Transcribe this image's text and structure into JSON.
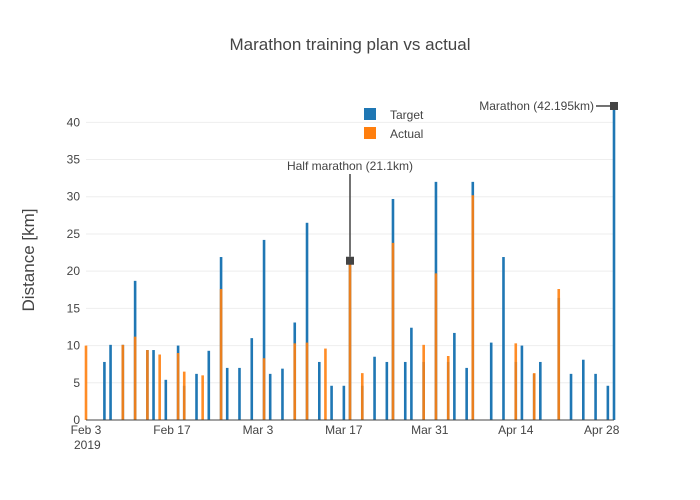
{
  "colors": {
    "target": "#1f77b4",
    "actual": "#ff7f0e",
    "grid": "#eeeeee",
    "annotation": "#444444"
  },
  "chart_data": {
    "type": "bar",
    "barmode": "overlay",
    "title": "Marathon training plan vs actual",
    "xlabel": "",
    "ylabel": "Distance [km]",
    "ylim": [
      0,
      43
    ],
    "yticks": [
      "0",
      "5",
      "10",
      "15",
      "20",
      "25",
      "30",
      "35",
      "40"
    ],
    "xrange_days": [
      0,
      86
    ],
    "xticks": [
      {
        "day": 0,
        "label": "Feb 3",
        "sublabel": "2019"
      },
      {
        "day": 14,
        "label": "Feb 17",
        "sublabel": ""
      },
      {
        "day": 28,
        "label": "Mar 3",
        "sublabel": ""
      },
      {
        "day": 42,
        "label": "Mar 17",
        "sublabel": ""
      },
      {
        "day": 56,
        "label": "Mar 31",
        "sublabel": ""
      },
      {
        "day": 70,
        "label": "Apr 14",
        "sublabel": ""
      },
      {
        "day": 84,
        "label": "Apr 28",
        "sublabel": ""
      }
    ],
    "series": [
      {
        "name": "Target",
        "color": "#1f77b4",
        "points": [
          {
            "day": 3,
            "value": 7.8
          },
          {
            "day": 4,
            "value": 10.1
          },
          {
            "day": 6,
            "value": 10.1
          },
          {
            "day": 8,
            "value": 18.7
          },
          {
            "day": 10,
            "value": 9.4
          },
          {
            "day": 11,
            "value": 9.4
          },
          {
            "day": 13,
            "value": 5.4
          },
          {
            "day": 15,
            "value": 10.0
          },
          {
            "day": 16,
            "value": 4.6
          },
          {
            "day": 18,
            "value": 6.2
          },
          {
            "day": 20,
            "value": 9.3
          },
          {
            "day": 22,
            "value": 21.9
          },
          {
            "day": 23,
            "value": 7.0
          },
          {
            "day": 25,
            "value": 7.0
          },
          {
            "day": 27,
            "value": 11.0
          },
          {
            "day": 29,
            "value": 24.2
          },
          {
            "day": 30,
            "value": 6.2
          },
          {
            "day": 32,
            "value": 6.9
          },
          {
            "day": 34,
            "value": 13.1
          },
          {
            "day": 36,
            "value": 26.5
          },
          {
            "day": 38,
            "value": 7.8
          },
          {
            "day": 40,
            "value": 4.6
          },
          {
            "day": 42,
            "value": 4.6
          },
          {
            "day": 43,
            "value": 21.1
          },
          {
            "day": 45,
            "value": 4.6
          },
          {
            "day": 47,
            "value": 8.5
          },
          {
            "day": 49,
            "value": 7.8
          },
          {
            "day": 50,
            "value": 29.7
          },
          {
            "day": 52,
            "value": 7.8
          },
          {
            "day": 53,
            "value": 12.4
          },
          {
            "day": 55,
            "value": 7.8
          },
          {
            "day": 57,
            "value": 32.0
          },
          {
            "day": 59,
            "value": 7.8
          },
          {
            "day": 60,
            "value": 11.7
          },
          {
            "day": 62,
            "value": 7.0
          },
          {
            "day": 63,
            "value": 32.0
          },
          {
            "day": 66,
            "value": 10.4
          },
          {
            "day": 68,
            "value": 21.9
          },
          {
            "day": 70,
            "value": 7.8
          },
          {
            "day": 71,
            "value": 10.0
          },
          {
            "day": 73,
            "value": 6.2
          },
          {
            "day": 74,
            "value": 7.8
          },
          {
            "day": 77,
            "value": 16.4
          },
          {
            "day": 79,
            "value": 6.2
          },
          {
            "day": 81,
            "value": 8.1
          },
          {
            "day": 83,
            "value": 6.2
          },
          {
            "day": 85,
            "value": 4.6
          },
          {
            "day": 86,
            "value": 42.195
          }
        ]
      },
      {
        "name": "Actual",
        "color": "#ff7f0e",
        "points": [
          {
            "day": 0,
            "value": 10.0
          },
          {
            "day": 6,
            "value": 10.1
          },
          {
            "day": 8,
            "value": 11.2
          },
          {
            "day": 10,
            "value": 9.4
          },
          {
            "day": 12,
            "value": 8.8
          },
          {
            "day": 15,
            "value": 9.0
          },
          {
            "day": 16,
            "value": 6.5
          },
          {
            "day": 19,
            "value": 6.0
          },
          {
            "day": 22,
            "value": 17.6
          },
          {
            "day": 29,
            "value": 8.3
          },
          {
            "day": 34,
            "value": 10.3
          },
          {
            "day": 36,
            "value": 10.4
          },
          {
            "day": 39,
            "value": 9.6
          },
          {
            "day": 43,
            "value": 21.3
          },
          {
            "day": 45,
            "value": 6.3
          },
          {
            "day": 50,
            "value": 23.8
          },
          {
            "day": 55,
            "value": 10.1
          },
          {
            "day": 57,
            "value": 19.7
          },
          {
            "day": 59,
            "value": 8.6
          },
          {
            "day": 63,
            "value": 30.2
          },
          {
            "day": 70,
            "value": 10.3
          },
          {
            "day": 73,
            "value": 6.3
          },
          {
            "day": 77,
            "value": 17.6
          }
        ]
      }
    ],
    "annotations": [
      {
        "text": "Half marathon (21.1km)",
        "day": 43,
        "value": 21.4,
        "position": "above"
      },
      {
        "text": "Marathon (42.195km)",
        "day": 86,
        "value": 42.195,
        "position": "left"
      }
    ],
    "legend": {
      "position": "top-center"
    }
  }
}
